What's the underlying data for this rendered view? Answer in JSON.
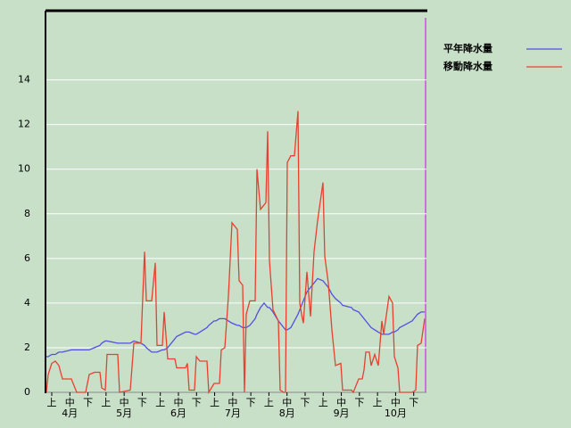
{
  "chart_data": {
    "type": "line",
    "x": [
      0,
      1,
      3,
      5,
      7,
      9,
      14,
      17,
      22,
      24,
      27,
      30,
      31,
      33,
      34,
      40,
      41,
      47,
      49,
      53,
      55,
      56,
      59,
      61,
      62,
      65,
      66,
      68,
      72,
      73,
      78,
      79,
      80,
      83,
      84,
      86,
      90,
      91,
      94,
      95,
      97,
      98,
      100,
      102,
      104,
      107,
      108,
      110,
      111,
      112,
      114,
      117,
      118,
      120,
      122,
      123,
      124,
      125,
      127,
      130,
      131,
      133,
      134,
      135,
      137,
      139,
      141,
      142,
      143,
      144,
      146,
      148,
      150,
      152,
      155,
      156,
      158,
      160,
      162,
      165,
      166,
      171,
      172,
      175,
      177,
      178,
      179,
      181,
      182,
      184,
      186,
      188,
      189,
      192,
      194,
      195,
      197,
      198,
      205,
      207,
      208,
      210,
      212
    ],
    "xlim": [
      0,
      213
    ],
    "dekad_labels": [
      "上",
      "中",
      "下",
      "上",
      "中",
      "下",
      "上",
      "中",
      "下",
      "上",
      "中",
      "下",
      "上",
      "中",
      "下",
      "上",
      "中",
      "下",
      "上",
      "中",
      "下"
    ],
    "month_labels": [
      "4月",
      "5月",
      "6月",
      "7月",
      "8月",
      "9月",
      "10月"
    ],
    "series": [
      {
        "name": "平年降水量",
        "color": "#5050e0",
        "values": [
          1.6,
          1.6,
          1.7,
          1.7,
          1.8,
          1.8,
          1.9,
          1.9,
          1.9,
          1.9,
          2.0,
          2.1,
          2.2,
          2.3,
          2.3,
          2.2,
          2.2,
          2.2,
          2.3,
          2.2,
          2.1,
          2.0,
          1.8,
          1.8,
          1.8,
          1.9,
          1.9,
          2.0,
          2.4,
          2.5,
          2.7,
          2.7,
          2.7,
          2.6,
          2.6,
          2.7,
          2.9,
          3.0,
          3.2,
          3.2,
          3.3,
          3.3,
          3.3,
          3.2,
          3.1,
          3.0,
          3.0,
          2.9,
          2.9,
          2.9,
          3.0,
          3.3,
          3.5,
          3.8,
          4.0,
          3.9,
          3.8,
          3.8,
          3.6,
          3.2,
          3.1,
          2.9,
          2.8,
          2.8,
          2.9,
          3.2,
          3.5,
          3.7,
          3.9,
          4.1,
          4.5,
          4.7,
          4.9,
          5.1,
          5.0,
          4.9,
          4.7,
          4.4,
          4.2,
          4.0,
          3.9,
          3.8,
          3.7,
          3.6,
          3.4,
          3.3,
          3.2,
          3.0,
          2.9,
          2.8,
          2.7,
          2.6,
          2.6,
          2.6,
          2.7,
          2.7,
          2.8,
          2.9,
          3.2,
          3.4,
          3.5,
          3.6,
          3.6
        ]
      },
      {
        "name": "移動降水量",
        "color": "#e84030",
        "values": [
          0,
          0.8,
          1.3,
          1.4,
          1.2,
          0.6,
          0.6,
          0,
          0,
          0.8,
          0.9,
          0.9,
          0.2,
          0.1,
          1.7,
          1.7,
          0,
          0.1,
          2.2,
          2.2,
          6.3,
          4.1,
          4.1,
          5.8,
          2.1,
          2.1,
          3.6,
          1.5,
          1.5,
          1.1,
          1.1,
          1.3,
          0.1,
          0.1,
          1.6,
          1.4,
          1.4,
          0,
          0.4,
          0.4,
          0.4,
          1.9,
          2.0,
          4.3,
          7.6,
          7.3,
          5.0,
          4.8,
          0,
          3.5,
          4.1,
          4.1,
          10,
          8.2,
          8.4,
          8.5,
          11.7,
          5.9,
          3.7,
          3.2,
          0.1,
          0,
          0,
          10.3,
          10.6,
          10.6,
          12.6,
          4.0,
          3.5,
          3.1,
          5.4,
          3.4,
          6.3,
          7.7,
          9.4,
          6.1,
          4.9,
          2.8,
          1.2,
          1.3,
          0.1,
          0.1,
          0,
          0.6,
          0.6,
          1.0,
          1.8,
          1.8,
          1.2,
          1.7,
          1.2,
          3.2,
          2.6,
          4.3,
          4.0,
          1.6,
          1.1,
          0,
          0,
          0.1,
          2.1,
          2.2,
          3.3
        ]
      }
    ],
    "ylim": [
      0,
      17.1
    ],
    "yticks": [
      0,
      2,
      4,
      6,
      8,
      10,
      12,
      14
    ],
    "grid": true
  }
}
